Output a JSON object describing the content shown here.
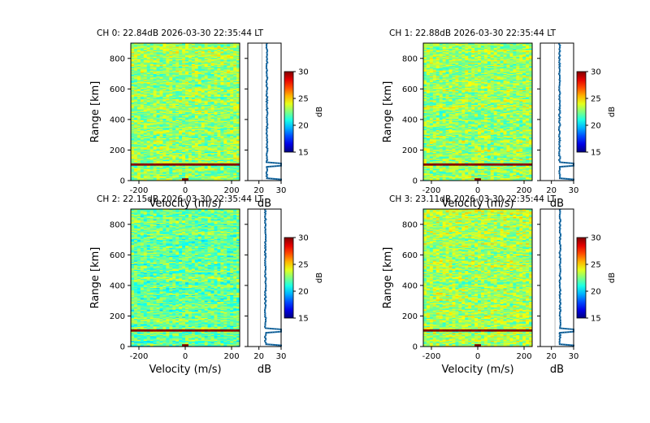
{
  "chart_data": [
    {
      "type": "heatmap",
      "title": "CH 0: 22.84dB 2026-03-30 22:35:44 LT",
      "xlabel": "Velocity (m/s)",
      "ylabel": "Range [km]",
      "xlim": [
        -235,
        235
      ],
      "ylim": [
        0,
        900
      ],
      "xticks": [
        -200,
        0,
        200
      ],
      "yticks": [
        0,
        200,
        400,
        600,
        800
      ],
      "noise_db": 22.84,
      "hot_range_km": 105,
      "colorbar": {
        "label": "dB",
        "range": [
          15,
          30
        ],
        "ticks": [
          15,
          20,
          25,
          30
        ],
        "colormap": "jet"
      },
      "profile": {
        "xlabel": "dB",
        "xlim": [
          15,
          30
        ],
        "xticks": [
          20,
          30
        ],
        "color": "#1f77b4"
      }
    },
    {
      "type": "heatmap",
      "title": "CH 1: 22.88dB 2026-03-30 22:35:44 LT",
      "xlabel": "Velocity (m/s)",
      "ylabel": "Range [km]",
      "xlim": [
        -235,
        235
      ],
      "ylim": [
        0,
        900
      ],
      "xticks": [
        -200,
        0,
        200
      ],
      "yticks": [
        0,
        200,
        400,
        600,
        800
      ],
      "noise_db": 22.88,
      "hot_range_km": 105,
      "colorbar": {
        "label": "dB",
        "range": [
          15,
          30
        ],
        "ticks": [
          15,
          20,
          25,
          30
        ],
        "colormap": "jet"
      },
      "profile": {
        "xlabel": "dB",
        "xlim": [
          15,
          30
        ],
        "xticks": [
          20,
          30
        ],
        "color": "#1f77b4"
      }
    },
    {
      "type": "heatmap",
      "title": "CH 2: 22.15dB 2026-03-30 22:35:44 LT",
      "xlabel": "Velocity (m/s)",
      "ylabel": "Range [km]",
      "xlim": [
        -235,
        235
      ],
      "ylim": [
        0,
        900
      ],
      "xticks": [
        -200,
        0,
        200
      ],
      "yticks": [
        0,
        200,
        400,
        600,
        800
      ],
      "noise_db": 22.15,
      "hot_range_km": 105,
      "colorbar": {
        "label": "dB",
        "range": [
          15,
          30
        ],
        "ticks": [
          15,
          20,
          25,
          30
        ],
        "colormap": "jet"
      },
      "profile": {
        "xlabel": "dB",
        "xlim": [
          15,
          30
        ],
        "xticks": [
          20,
          30
        ],
        "color": "#1f77b4"
      }
    },
    {
      "type": "heatmap",
      "title": "CH 3: 23.11dB 2026-03-30 22:35:44 LT",
      "xlabel": "Velocity (m/s)",
      "ylabel": "Range [km]",
      "xlim": [
        -235,
        235
      ],
      "ylim": [
        0,
        900
      ],
      "xticks": [
        -200,
        0,
        200
      ],
      "yticks": [
        0,
        200,
        400,
        600,
        800
      ],
      "noise_db": 23.11,
      "hot_range_km": 105,
      "colorbar": {
        "label": "dB",
        "range": [
          15,
          30
        ],
        "ticks": [
          15,
          20,
          25,
          30
        ],
        "colormap": "jet"
      },
      "profile": {
        "xlabel": "dB",
        "xlim": [
          15,
          30
        ],
        "xticks": [
          20,
          30
        ],
        "color": "#1f77b4"
      }
    }
  ]
}
